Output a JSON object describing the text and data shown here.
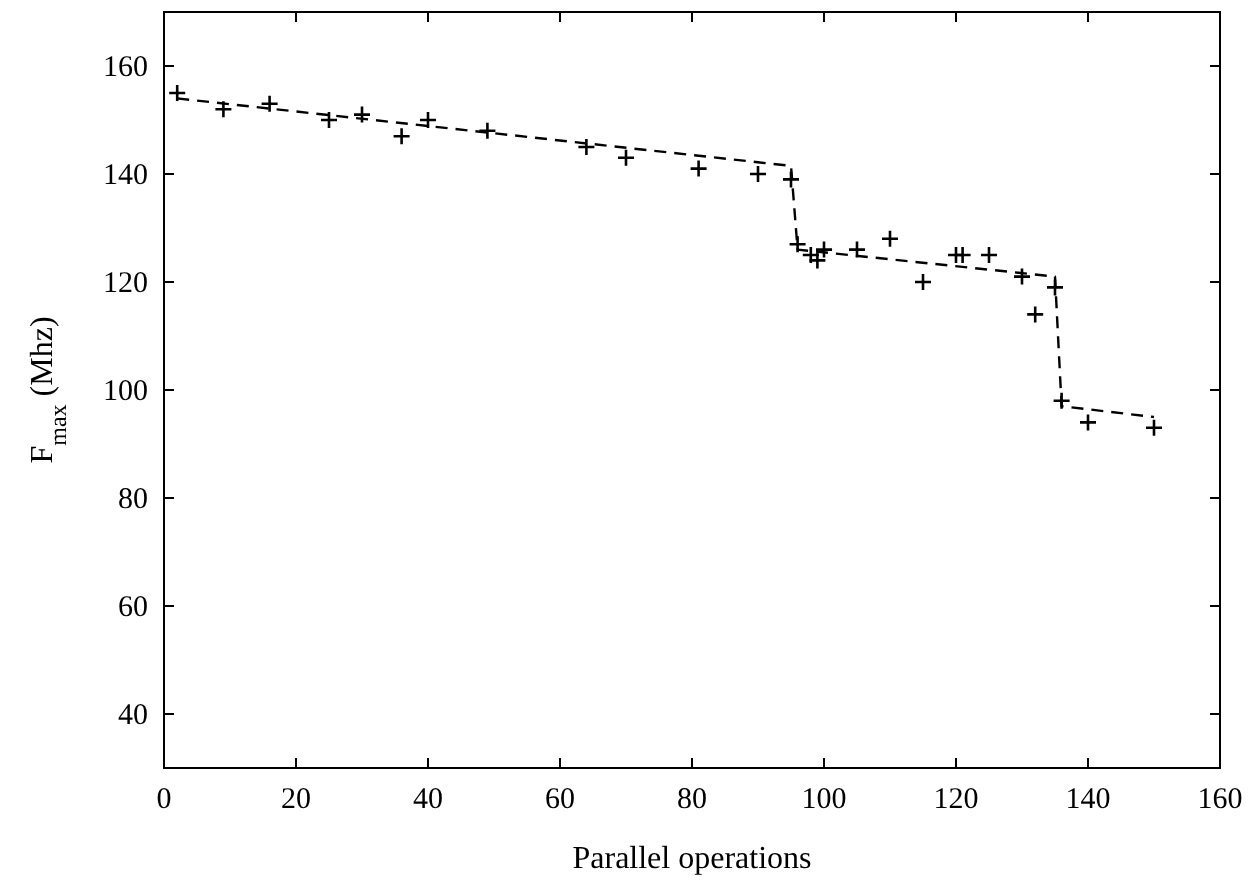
{
  "chart_data": {
    "type": "scatter",
    "xlabel": "Parallel operations",
    "ylabel": "F$_{max}$ (Mhz)",
    "xlim": [
      0,
      160
    ],
    "ylim": [
      30,
      170
    ],
    "xticks": [
      0,
      20,
      40,
      60,
      80,
      100,
      120,
      140,
      160
    ],
    "yticks": [
      40,
      60,
      80,
      100,
      120,
      140,
      160
    ],
    "grid": false,
    "series": [
      {
        "color": "#000000",
        "marker": "cross",
        "x": [
          2,
          9,
          16,
          25,
          30,
          36,
          40,
          49,
          64,
          70,
          81,
          90,
          95,
          96,
          98,
          99,
          100,
          105,
          110,
          115,
          120,
          121,
          125,
          130,
          132,
          135,
          136,
          140,
          150
        ],
        "values": [
          155,
          152,
          153,
          150,
          151,
          147,
          150,
          148,
          145,
          143,
          141,
          140,
          139,
          127,
          125,
          124,
          126,
          126,
          128,
          120,
          125,
          125,
          125,
          121,
          114,
          119,
          98,
          94,
          93
        ]
      },
      {
        "type": "line",
        "color": "#000000",
        "line_style": "dashed",
        "marker": "none",
        "x": [
          2,
          95,
          96,
          135,
          136,
          150
        ],
        "values": [
          154,
          141.5,
          126,
          121,
          97,
          95
        ]
      }
    ]
  }
}
